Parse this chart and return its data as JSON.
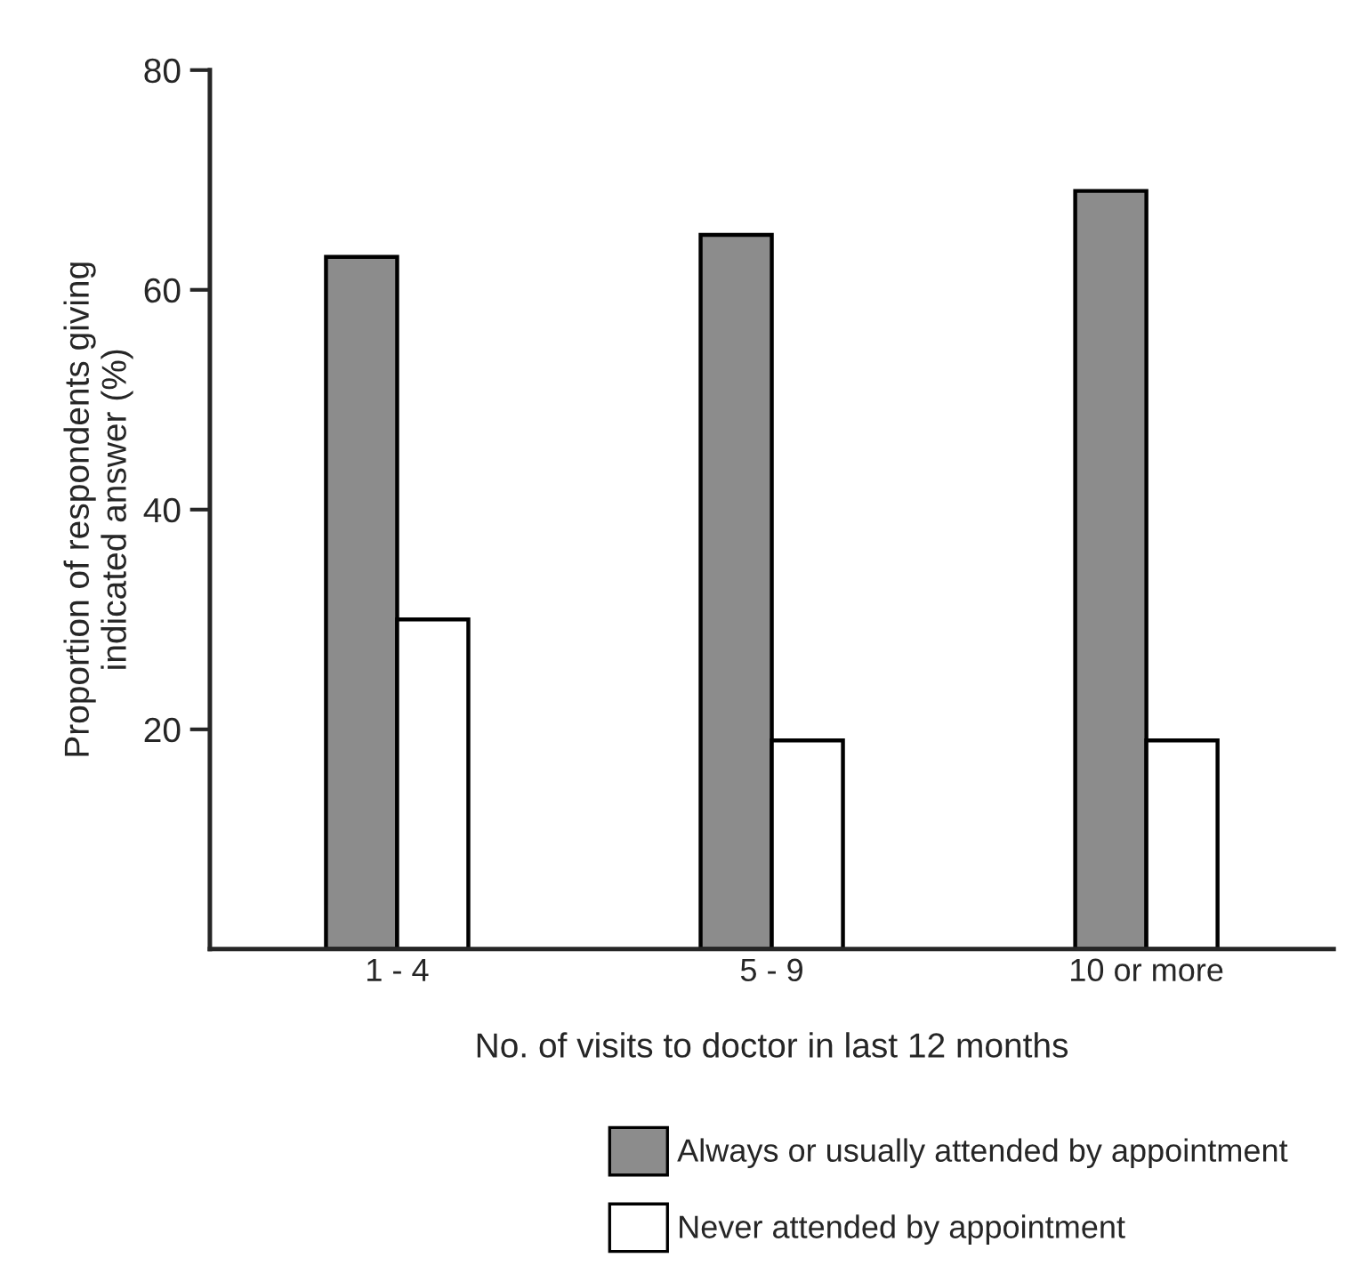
{
  "chart_data": {
    "type": "bar",
    "xlabel": "No. of visits to doctor in last 12 months",
    "ylabel": "Proportion of respondents giving\nindicated answer (%)",
    "categories": [
      "1 - 4",
      "5 - 9",
      "10 or more"
    ],
    "series": [
      {
        "name": "Always or usually attended by appointment",
        "color": "#8c8c8c",
        "values": [
          63,
          65,
          69
        ]
      },
      {
        "name": "Never attended by appointment",
        "color": "#ffffff",
        "values": [
          30,
          19,
          19
        ]
      }
    ],
    "ylim": [
      0,
      80
    ],
    "yticks": [
      20,
      40,
      60,
      80
    ],
    "grid": false,
    "legend": "bottom"
  }
}
